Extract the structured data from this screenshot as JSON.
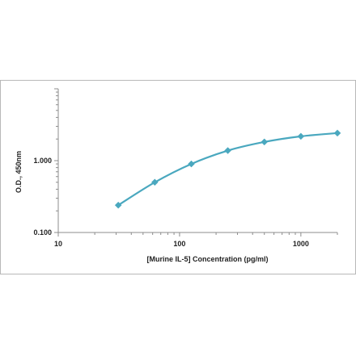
{
  "chart_data": {
    "type": "line",
    "title": "",
    "xlabel": "[Murine IL-5] Concentration (pg/ml)",
    "ylabel": "O.D., 450nm",
    "x_scale": "log",
    "y_scale": "log",
    "xlim": [
      10,
      2000
    ],
    "ylim": [
      0.1,
      10
    ],
    "x_ticks": [
      {
        "value": 10,
        "label": "10"
      },
      {
        "value": 100,
        "label": "100"
      },
      {
        "value": 1000,
        "label": "1000"
      }
    ],
    "y_ticks": [
      {
        "value": 0.1,
        "label": "0.100"
      },
      {
        "value": 1,
        "label": "1.000"
      }
    ],
    "grid": false,
    "legend": "none",
    "series": [
      {
        "color": "#4aa8bf",
        "marker": "diamond",
        "x": [
          31.25,
          62.5,
          125,
          250,
          500,
          1000,
          2000
        ],
        "y": [
          0.24,
          0.5,
          0.9,
          1.38,
          1.82,
          2.18,
          2.42
        ]
      }
    ]
  }
}
